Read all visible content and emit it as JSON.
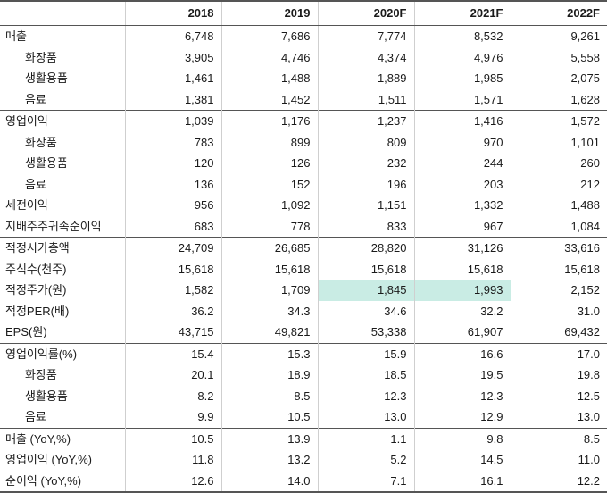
{
  "header": [
    "",
    "2018",
    "2019",
    "2020F",
    "2021F",
    "2022F"
  ],
  "rows": [
    {
      "label": "매출",
      "values": [
        "6,748",
        "7,686",
        "7,774",
        "8,532",
        "9,261"
      ]
    },
    {
      "label": "화장품",
      "values": [
        "3,905",
        "4,746",
        "4,374",
        "4,976",
        "5,558"
      ]
    },
    {
      "label": "생활용품",
      "values": [
        "1,461",
        "1,488",
        "1,889",
        "1,985",
        "2,075"
      ]
    },
    {
      "label": "음료",
      "values": [
        "1,381",
        "1,452",
        "1,511",
        "1,571",
        "1,628"
      ]
    },
    {
      "label": "영업이익",
      "values": [
        "1,039",
        "1,176",
        "1,237",
        "1,416",
        "1,572"
      ]
    },
    {
      "label": "화장품",
      "values": [
        "783",
        "899",
        "809",
        "970",
        "1,101"
      ]
    },
    {
      "label": "생활용품",
      "values": [
        "120",
        "126",
        "232",
        "244",
        "260"
      ]
    },
    {
      "label": "음료",
      "values": [
        "136",
        "152",
        "196",
        "203",
        "212"
      ]
    },
    {
      "label": "세전이익",
      "values": [
        "956",
        "1,092",
        "1,151",
        "1,332",
        "1,488"
      ]
    },
    {
      "label": "지배주주귀속순이익",
      "values": [
        "683",
        "778",
        "833",
        "967",
        "1,084"
      ]
    },
    {
      "label": "적정시가총액",
      "values": [
        "24,709",
        "26,685",
        "28,820",
        "31,126",
        "33,616"
      ]
    },
    {
      "label": "주식수(천주)",
      "values": [
        "15,618",
        "15,618",
        "15,618",
        "15,618",
        "15,618"
      ]
    },
    {
      "label": "적정주가(원)",
      "values": [
        "1,582",
        "1,709",
        "1,845",
        "1,993",
        "2,152"
      ]
    },
    {
      "label": "적정PER(배)",
      "values": [
        "36.2",
        "34.3",
        "34.6",
        "32.2",
        "31.0"
      ]
    },
    {
      "label": "EPS(원)",
      "values": [
        "43,715",
        "49,821",
        "53,338",
        "61,907",
        "69,432"
      ]
    },
    {
      "label": "영업이익률(%)",
      "values": [
        "15.4",
        "15.3",
        "15.9",
        "16.6",
        "17.0"
      ]
    },
    {
      "label": "화장품",
      "values": [
        "20.1",
        "18.9",
        "18.5",
        "19.5",
        "19.8"
      ]
    },
    {
      "label": "생활용품",
      "values": [
        "8.2",
        "8.5",
        "12.3",
        "12.3",
        "12.5"
      ]
    },
    {
      "label": "음료",
      "values": [
        "9.9",
        "10.5",
        "13.0",
        "12.9",
        "13.0"
      ]
    },
    {
      "label": "매출 (YoY,%)",
      "values": [
        "10.5",
        "13.9",
        "1.1",
        "9.8",
        "8.5"
      ]
    },
    {
      "label": "영업이익 (YoY,%)",
      "values": [
        "11.8",
        "13.2",
        "5.2",
        "14.5",
        "11.0"
      ]
    },
    {
      "label": "순이익 (YoY,%)",
      "values": [
        "12.6",
        "14.0",
        "7.1",
        "16.1",
        "12.2"
      ]
    }
  ],
  "highlight_color": "#c9ece4"
}
